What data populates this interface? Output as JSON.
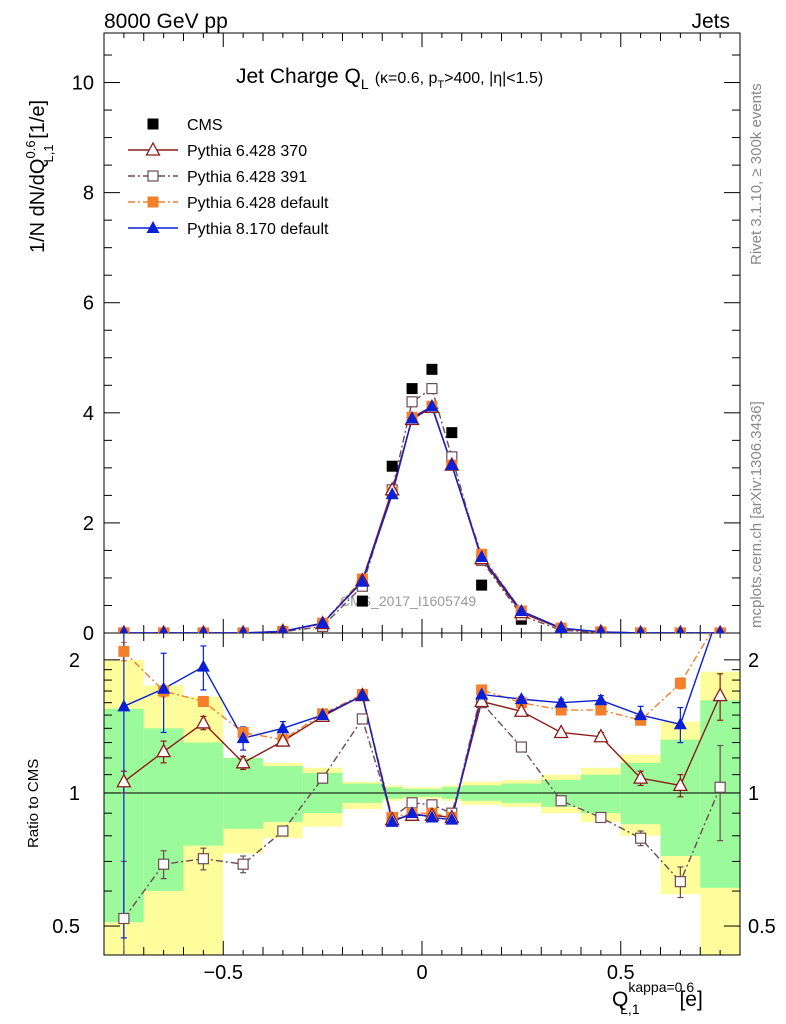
{
  "header": {
    "left": "8000 GeV pp",
    "right": "Jets"
  },
  "side": {
    "rivet": "Rivet 3.1.10, ≥ 300k events",
    "mcplots": "mcplots.cern.ch [arXiv:1306.3436]"
  },
  "watermark": "CMS_2017_I1605749",
  "title": {
    "main": "Jet Charge Q",
    "main_sub": "L",
    "detail_a": "(κ=0.6, p",
    "detail_sub": "T",
    "detail_b": ">400, |η|<1.5)"
  },
  "ylabel": {
    "a": "1/N dN/dQ",
    "sup": "0.6",
    "sub": "L,1",
    "b": " [1/e]"
  },
  "ratio_ylabel": "Ratio to CMS",
  "xlabel": {
    "a": "Q",
    "sup": "kappa=0.6",
    "sub": "L,1",
    "b": " [e]"
  },
  "colors": {
    "cms": "#000000",
    "p370": "#8b1a1a",
    "p391": "#6e4a55",
    "p6def": "#f4802b",
    "p8": "#0a1fd6",
    "band_green": "#9bfb9b",
    "band_yellow": "#fdfd9b"
  },
  "chart_data": {
    "type": "line",
    "x": [
      -0.75,
      -0.65,
      -0.55,
      -0.45,
      -0.35,
      -0.25,
      -0.15,
      -0.075,
      -0.025,
      0.025,
      0.075,
      0.15,
      0.25,
      0.35,
      0.45,
      0.55,
      0.65,
      0.75
    ],
    "bin_edges": [
      -0.8,
      -0.7,
      -0.6,
      -0.5,
      -0.4,
      -0.3,
      -0.2,
      -0.1,
      -0.05,
      0.0,
      0.05,
      0.1,
      0.2,
      0.3,
      0.4,
      0.5,
      0.6,
      0.7,
      0.8
    ],
    "xlim": [
      -0.8,
      0.8
    ],
    "xticks": [
      -0.5,
      0,
      0.5
    ],
    "xtick_labels": [
      "−0.5",
      "0",
      "0.5"
    ],
    "main": {
      "ylim": [
        0,
        10.9
      ],
      "yticks": [
        0,
        2,
        4,
        6,
        8,
        10
      ],
      "ytick_labels": [
        "0",
        "2",
        "4",
        "6",
        "8",
        "10"
      ]
    },
    "ratio": {
      "scale": "log",
      "ylim": [
        0.43,
        2.3
      ],
      "yticks": [
        0.5,
        1,
        2
      ],
      "ytick_labels": [
        "0.5",
        "1",
        "2"
      ],
      "band_green": [
        [
          0.51,
          1.55
        ],
        [
          0.6,
          1.4
        ],
        [
          0.76,
          1.3
        ],
        [
          0.83,
          1.2
        ],
        [
          0.86,
          1.15
        ],
        [
          0.9,
          1.11
        ],
        [
          0.95,
          1.05
        ],
        [
          0.97,
          1.03
        ],
        [
          0.98,
          1.02
        ],
        [
          0.98,
          1.02
        ],
        [
          0.97,
          1.03
        ],
        [
          0.96,
          1.04
        ],
        [
          0.95,
          1.05
        ],
        [
          0.93,
          1.07
        ],
        [
          0.9,
          1.1
        ],
        [
          0.85,
          1.17
        ],
        [
          0.72,
          1.32
        ],
        [
          0.61,
          1.62
        ]
      ],
      "band_yellow": [
        [
          0.4,
          2.0
        ],
        [
          0.4,
          1.75
        ],
        [
          0.4,
          1.65
        ],
        [
          0.73,
          1.2
        ],
        [
          0.79,
          1.17
        ],
        [
          0.84,
          1.14
        ],
        [
          0.92,
          1.06
        ],
        [
          0.96,
          1.04
        ],
        [
          0.97,
          1.03
        ],
        [
          0.97,
          1.03
        ],
        [
          0.96,
          1.04
        ],
        [
          0.94,
          1.06
        ],
        [
          0.93,
          1.07
        ],
        [
          0.9,
          1.1
        ],
        [
          0.86,
          1.14
        ],
        [
          0.8,
          1.22
        ],
        [
          0.59,
          1.45
        ],
        [
          0.4,
          1.88
        ]
      ]
    },
    "series": [
      {
        "key": "cms",
        "name": "CMS",
        "marker": "square-filled",
        "line": "none",
        "values": [
          0.0,
          0.0,
          0.0,
          0.0,
          0.0,
          0.14,
          0.58,
          3.03,
          4.44,
          4.79,
          3.64,
          0.87,
          0.25,
          0.04,
          0.0,
          0.0,
          0.0,
          0.0
        ]
      },
      {
        "key": "p370",
        "name": "Pythia 6.428 370",
        "marker": "triangle-open",
        "line": "solid",
        "values": [
          0.0,
          0.0,
          0.0,
          0.0,
          0.03,
          0.17,
          0.95,
          2.6,
          3.88,
          4.1,
          3.05,
          1.35,
          0.37,
          0.08,
          0.02,
          0.0,
          0.0,
          0.0
        ],
        "ratio": [
          1.06,
          1.24,
          1.44,
          1.17,
          1.31,
          1.49,
          1.66,
          0.87,
          0.89,
          0.89,
          0.88,
          1.61,
          1.53,
          1.37,
          1.34,
          1.08,
          1.04,
          1.66
        ],
        "ratio_err": [
          0.06,
          0.07,
          0.05,
          0.04,
          0.03,
          0.02,
          0.01,
          0.01,
          0.01,
          0.01,
          0.01,
          0.01,
          0.02,
          0.02,
          0.03,
          0.04,
          0.06,
          0.2
        ]
      },
      {
        "key": "p391",
        "name": "Pythia 6.428 391",
        "marker": "square-open",
        "line": "dashdot",
        "values": [
          0.0,
          0.0,
          0.0,
          0.0,
          0.02,
          0.12,
          0.85,
          2.6,
          4.2,
          4.44,
          3.2,
          1.32,
          0.32,
          0.05,
          0.01,
          0.0,
          0.0,
          0.0
        ],
        "ratio": [
          0.52,
          0.69,
          0.71,
          0.69,
          0.82,
          1.08,
          1.47,
          0.88,
          0.95,
          0.94,
          0.9,
          1.6,
          1.27,
          0.96,
          0.88,
          0.79,
          0.63,
          1.03
        ],
        "ratio_err": [
          0.18,
          0.05,
          0.04,
          0.03,
          0.02,
          0.01,
          0.01,
          0.01,
          0.01,
          0.01,
          0.01,
          0.01,
          0.01,
          0.01,
          0.02,
          0.03,
          0.05,
          0.25
        ]
      },
      {
        "key": "p6def",
        "name": "Pythia 6.428 default",
        "marker": "square-filled",
        "line": "dashdot",
        "values": [
          0.0,
          0.0,
          0.0,
          0.0,
          0.03,
          0.18,
          0.98,
          2.55,
          3.92,
          4.12,
          3.05,
          1.43,
          0.4,
          0.09,
          0.02,
          0.0,
          0.0,
          0.0
        ],
        "ratio": [
          2.09,
          1.7,
          1.61,
          1.37,
          1.32,
          1.51,
          1.67,
          0.88,
          0.9,
          0.9,
          0.88,
          1.71,
          1.6,
          1.54,
          1.54,
          1.46,
          1.77,
          2.5
        ],
        "ratio_err": [
          0.1,
          0.05,
          0.04,
          0.03,
          0.02,
          0.01,
          0.01,
          0.01,
          0.01,
          0.01,
          0.01,
          0.01,
          0.01,
          0.02,
          0.02,
          0.03,
          0.05,
          0.2
        ]
      },
      {
        "key": "p8",
        "name": "Pythia 8.170 default",
        "marker": "triangle-filled",
        "line": "solid",
        "values": [
          0.0,
          0.0,
          0.0,
          0.0,
          0.03,
          0.18,
          0.93,
          2.52,
          3.9,
          4.12,
          3.05,
          1.38,
          0.4,
          0.09,
          0.02,
          0.0,
          0.0,
          0.0
        ],
        "ratio": [
          1.57,
          1.72,
          1.93,
          1.33,
          1.4,
          1.5,
          1.66,
          0.86,
          0.9,
          0.88,
          0.87,
          1.67,
          1.63,
          1.6,
          1.62,
          1.5,
          1.43,
          2.6
        ],
        "ratio_err": [
          1.1,
          0.35,
          0.22,
          0.08,
          0.05,
          0.02,
          0.01,
          0.01,
          0.01,
          0.01,
          0.01,
          0.01,
          0.02,
          0.03,
          0.04,
          0.07,
          0.13,
          0.3
        ]
      }
    ]
  }
}
